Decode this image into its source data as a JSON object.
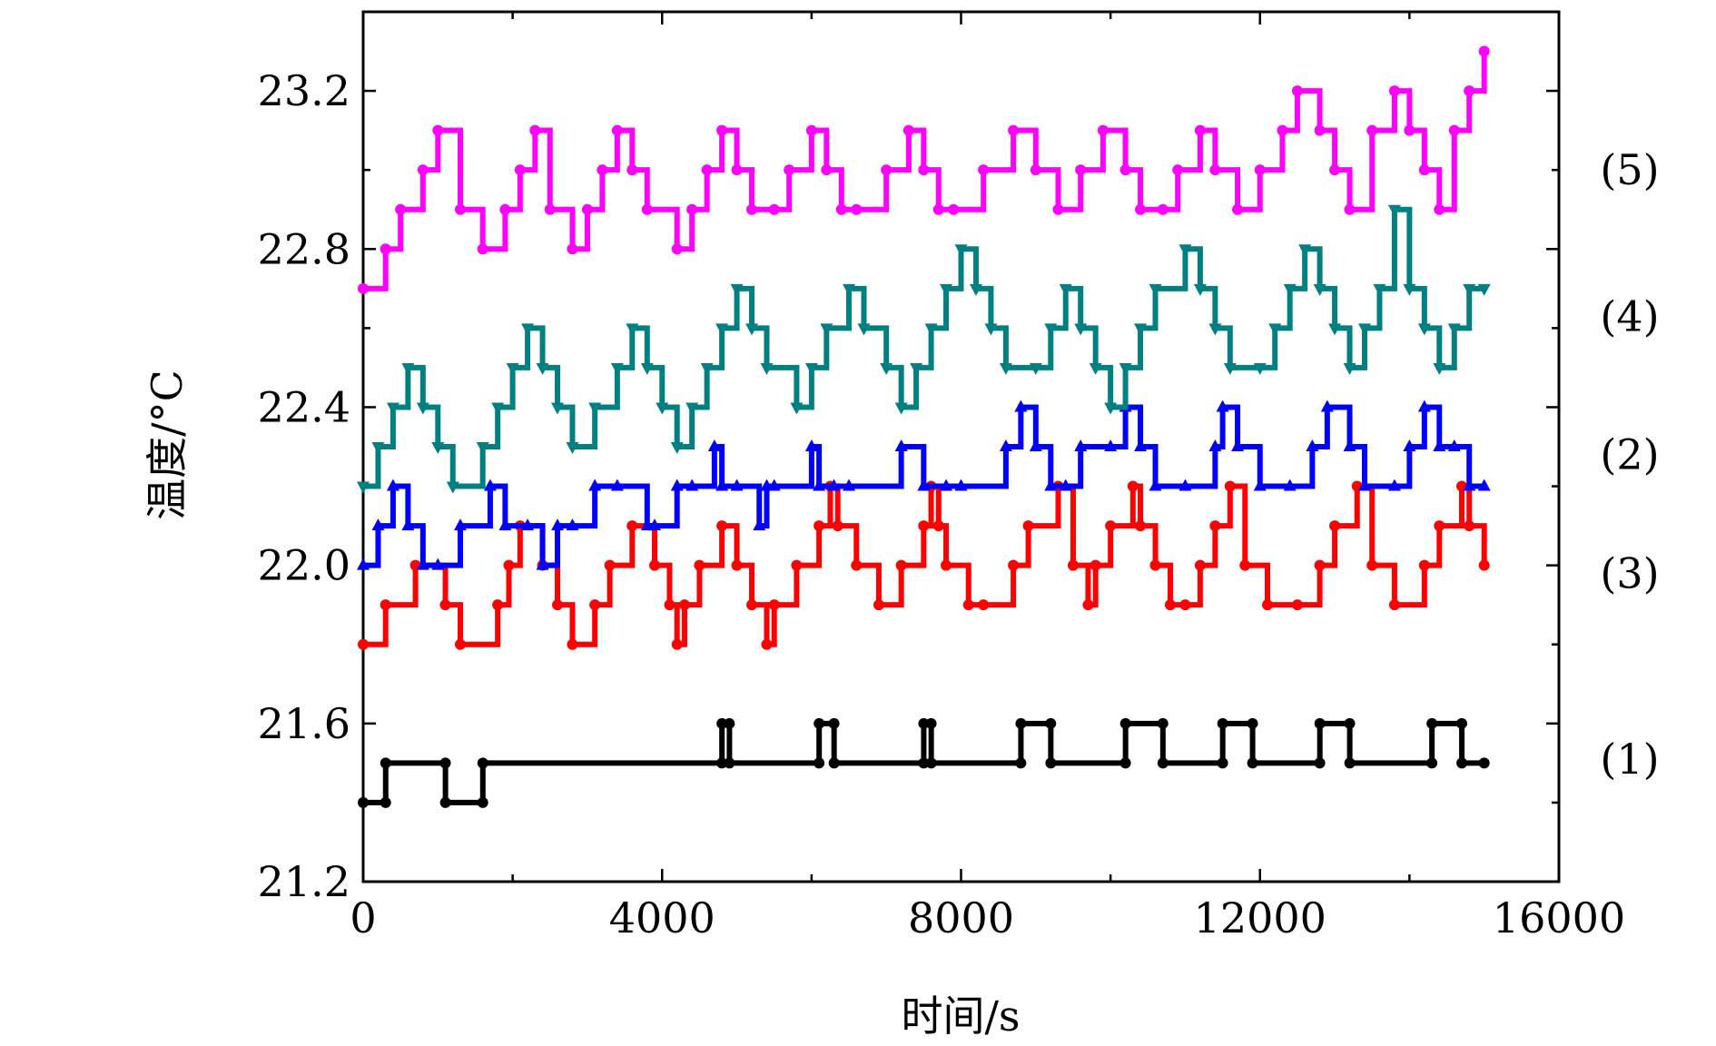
{
  "chart_data": {
    "type": "line",
    "xlabel": "时间/s",
    "ylabel": "温度/°C",
    "xlim": [
      0,
      16000
    ],
    "ylim": [
      21.2,
      23.4
    ],
    "x_ticks": [
      0,
      4000,
      8000,
      12000,
      16000
    ],
    "x_tick_labels": [
      "0",
      "4000",
      "8000",
      "12000",
      "16000"
    ],
    "y_ticks": [
      21.2,
      21.6,
      22.0,
      22.4,
      22.8,
      23.2
    ],
    "y_tick_labels": [
      "21.2",
      "21.6",
      "22.0",
      "22.4",
      "22.8",
      "23.2"
    ],
    "grid": false,
    "series": [
      {
        "name": "(1)",
        "color": "#000000",
        "marker": "circle",
        "x": [
          0,
          300,
          301,
          1100,
          1101,
          1600,
          1601,
          4800,
          4801,
          4900,
          4901,
          6100,
          6101,
          6300,
          6301,
          7500,
          7501,
          7600,
          7601,
          8800,
          8801,
          9200,
          9201,
          10200,
          10201,
          10700,
          10701,
          11500,
          11501,
          11900,
          11901,
          12800,
          12801,
          13200,
          13201,
          14300,
          14301,
          14700,
          14701,
          15000
        ],
        "values": [
          21.4,
          21.4,
          21.5,
          21.5,
          21.4,
          21.4,
          21.5,
          21.5,
          21.6,
          21.6,
          21.5,
          21.5,
          21.6,
          21.6,
          21.5,
          21.5,
          21.6,
          21.6,
          21.5,
          21.5,
          21.6,
          21.6,
          21.5,
          21.5,
          21.6,
          21.6,
          21.5,
          21.5,
          21.6,
          21.6,
          21.5,
          21.5,
          21.6,
          21.6,
          21.5,
          21.5,
          21.6,
          21.6,
          21.5,
          21.5
        ]
      },
      {
        "name": "(3)",
        "color": "#ff0000",
        "marker": "circle",
        "x": [
          0,
          300,
          700,
          1100,
          1300,
          1800,
          1950,
          2100,
          2400,
          2600,
          2800,
          3100,
          3300,
          3600,
          3900,
          4100,
          4200,
          4300,
          4500,
          4800,
          5000,
          5200,
          5400,
          5500,
          5800,
          6100,
          6250,
          6350,
          6600,
          6900,
          7200,
          7500,
          7600,
          7700,
          7800,
          8100,
          8300,
          8700,
          8900,
          9300,
          9500,
          9700,
          9800,
          10000,
          10300,
          10400,
          10600,
          10800,
          11000,
          11200,
          11400,
          11600,
          11800,
          12100,
          12500,
          12800,
          13000,
          13300,
          13500,
          13800,
          14200,
          14400,
          14700,
          14800,
          15000
        ],
        "values": [
          21.8,
          21.9,
          22.0,
          21.9,
          21.8,
          21.9,
          22.0,
          22.1,
          22.0,
          21.9,
          21.8,
          21.9,
          22.0,
          22.1,
          22.0,
          21.9,
          21.8,
          21.9,
          22.0,
          22.1,
          22.0,
          21.9,
          21.8,
          21.9,
          22.0,
          22.1,
          22.2,
          22.1,
          22.0,
          21.9,
          22.0,
          22.1,
          22.2,
          22.1,
          22.0,
          21.9,
          21.9,
          22.0,
          22.1,
          22.2,
          22.0,
          21.9,
          22.0,
          22.1,
          22.2,
          22.1,
          22.0,
          21.9,
          21.9,
          22.0,
          22.1,
          22.2,
          22.0,
          21.9,
          21.9,
          22.0,
          22.1,
          22.2,
          22.0,
          21.9,
          22.0,
          22.1,
          22.2,
          22.1,
          22.0
        ]
      },
      {
        "name": "(2)",
        "color": "#0000ff",
        "marker": "triangle-up",
        "x": [
          0,
          200,
          400,
          600,
          800,
          1000,
          1300,
          1700,
          1900,
          2200,
          2400,
          2600,
          2800,
          3100,
          3400,
          3800,
          3900,
          4200,
          4400,
          4700,
          4800,
          5000,
          5300,
          5400,
          5500,
          6000,
          6100,
          6300,
          6500,
          7200,
          7500,
          7800,
          8000,
          8600,
          8800,
          9000,
          9200,
          9400,
          9600,
          10000,
          10200,
          10400,
          10600,
          11000,
          11400,
          11500,
          11700,
          12000,
          12400,
          12700,
          12900,
          13200,
          13400,
          13800,
          14000,
          14200,
          14400,
          14600,
          14800,
          15000
        ],
        "values": [
          22.0,
          22.1,
          22.2,
          22.1,
          22.0,
          22.0,
          22.1,
          22.2,
          22.1,
          22.1,
          22.0,
          22.1,
          22.1,
          22.2,
          22.2,
          22.1,
          22.1,
          22.2,
          22.2,
          22.3,
          22.2,
          22.2,
          22.1,
          22.2,
          22.2,
          22.3,
          22.2,
          22.2,
          22.2,
          22.3,
          22.2,
          22.2,
          22.2,
          22.3,
          22.4,
          22.3,
          22.2,
          22.2,
          22.3,
          22.3,
          22.4,
          22.3,
          22.2,
          22.2,
          22.3,
          22.4,
          22.3,
          22.2,
          22.2,
          22.3,
          22.4,
          22.3,
          22.2,
          22.2,
          22.3,
          22.4,
          22.3,
          22.3,
          22.2,
          22.2
        ]
      },
      {
        "name": "(4)",
        "color": "#008080",
        "marker": "triangle-down",
        "x": [
          0,
          200,
          400,
          600,
          800,
          1000,
          1200,
          1600,
          1800,
          2000,
          2200,
          2400,
          2600,
          2800,
          3100,
          3400,
          3600,
          3800,
          4000,
          4200,
          4400,
          4600,
          4800,
          5000,
          5200,
          5400,
          5800,
          6000,
          6200,
          6500,
          6700,
          7000,
          7200,
          7400,
          7600,
          7800,
          8000,
          8200,
          8400,
          8600,
          9000,
          9200,
          9400,
          9600,
          9800,
          10000,
          10200,
          10400,
          10600,
          11000,
          11200,
          11400,
          11600,
          12000,
          12200,
          12400,
          12600,
          12800,
          13000,
          13200,
          13400,
          13600,
          13800,
          14000,
          14200,
          14400,
          14600,
          14800,
          15000
        ],
        "values": [
          22.2,
          22.3,
          22.4,
          22.5,
          22.4,
          22.3,
          22.2,
          22.3,
          22.4,
          22.5,
          22.6,
          22.5,
          22.4,
          22.3,
          22.4,
          22.5,
          22.6,
          22.5,
          22.4,
          22.3,
          22.4,
          22.5,
          22.6,
          22.7,
          22.6,
          22.5,
          22.4,
          22.5,
          22.6,
          22.7,
          22.6,
          22.5,
          22.4,
          22.5,
          22.6,
          22.7,
          22.8,
          22.7,
          22.6,
          22.5,
          22.5,
          22.6,
          22.7,
          22.6,
          22.5,
          22.4,
          22.5,
          22.6,
          22.7,
          22.8,
          22.7,
          22.6,
          22.5,
          22.5,
          22.6,
          22.7,
          22.8,
          22.7,
          22.6,
          22.5,
          22.6,
          22.7,
          22.9,
          22.7,
          22.6,
          22.5,
          22.6,
          22.7,
          22.7
        ]
      },
      {
        "name": "(5)",
        "color": "#ff00ff",
        "marker": "circle",
        "x": [
          0,
          300,
          500,
          800,
          1000,
          1300,
          1600,
          1900,
          2100,
          2300,
          2500,
          2800,
          3000,
          3200,
          3400,
          3600,
          3800,
          4200,
          4400,
          4600,
          4800,
          5000,
          5200,
          5500,
          5700,
          6000,
          6200,
          6400,
          6600,
          7000,
          7300,
          7500,
          7700,
          7900,
          8300,
          8700,
          9000,
          9300,
          9600,
          9900,
          10200,
          10400,
          10700,
          10900,
          11200,
          11400,
          11700,
          12000,
          12300,
          12500,
          12800,
          13000,
          13200,
          13500,
          13800,
          14000,
          14200,
          14400,
          14600,
          14800,
          15000
        ],
        "values": [
          22.7,
          22.8,
          22.9,
          23.0,
          23.1,
          22.9,
          22.8,
          22.9,
          23.0,
          23.1,
          22.9,
          22.8,
          22.9,
          23.0,
          23.1,
          23.0,
          22.9,
          22.8,
          22.9,
          23.0,
          23.1,
          23.0,
          22.9,
          22.9,
          23.0,
          23.1,
          23.0,
          22.9,
          22.9,
          23.0,
          23.1,
          23.0,
          22.9,
          22.9,
          23.0,
          23.1,
          23.0,
          22.9,
          23.0,
          23.1,
          23.0,
          22.9,
          22.9,
          23.0,
          23.1,
          23.0,
          22.9,
          23.0,
          23.1,
          23.2,
          23.1,
          23.0,
          22.9,
          23.1,
          23.2,
          23.1,
          23.0,
          22.9,
          23.1,
          23.2,
          23.3
        ]
      }
    ],
    "series_labels": [
      {
        "text": "(5)",
        "y": 23.0
      },
      {
        "text": "(4)",
        "y": 22.63
      },
      {
        "text": "(2)",
        "y": 22.28
      },
      {
        "text": "(3)",
        "y": 21.98
      },
      {
        "text": "(1)",
        "y": 21.51
      }
    ]
  }
}
